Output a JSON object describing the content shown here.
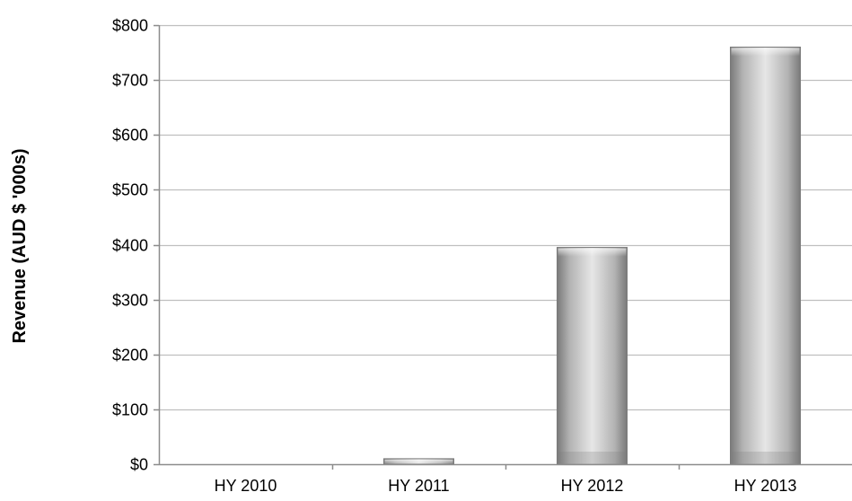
{
  "chart_data": {
    "type": "bar",
    "categories": [
      "HY 2010",
      "HY 2011",
      "HY 2012",
      "HY 2013"
    ],
    "values": [
      0,
      10,
      395,
      760
    ],
    "title": "",
    "xlabel": "",
    "ylabel": "Revenue (AUD $ '000s)",
    "ylim": [
      0,
      800
    ],
    "yticks": [
      "$0",
      "$100",
      "$200",
      "$300",
      "$400",
      "$500",
      "$600",
      "$700",
      "$800"
    ],
    "grid": true,
    "legend": "none",
    "colors": {
      "bar_fill": "#b3b3b3",
      "bar_highlight": "#e6e6e6",
      "bar_shadow": "#7a7a7a",
      "gridline": "#bfbfbf",
      "axis": "#8c8c8c"
    }
  }
}
